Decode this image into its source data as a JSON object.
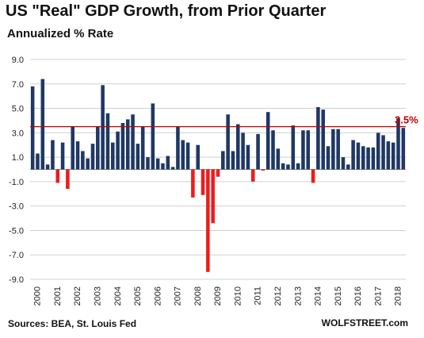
{
  "header": {
    "title": "US \"Real\" GDP Growth, from Prior Quarter",
    "subtitle": "Annualized % Rate"
  },
  "footer": {
    "source": "Sources: BEA, St. Louis Fed",
    "brand": "WOLFSTREET.com"
  },
  "colors": {
    "positive": "#1f3864",
    "negative": "#ee1c1c",
    "reference_line": "#c00000",
    "reference_label": "#c00000",
    "grid": "#d0d0d0"
  },
  "chart_data": {
    "type": "bar",
    "title": "US \"Real\" GDP Growth, from Prior Quarter",
    "subtitle": "Annualized % Rate",
    "ylim": [
      -9.0,
      9.0
    ],
    "yticks": [
      "9.0",
      "7.0",
      "5.0",
      "3.0",
      "1.0",
      "-1.0",
      "-3.0",
      "-5.0",
      "-7.0",
      "-9.0"
    ],
    "grid": "horizontal",
    "year_labels": [
      "2000",
      "2001",
      "2002",
      "2003",
      "2004",
      "2005",
      "2006",
      "2007",
      "2008",
      "2009",
      "2010",
      "2011",
      "2012",
      "2013",
      "2014",
      "2015",
      "2016",
      "2017",
      "2018"
    ],
    "quarters_start": "2000 Q1",
    "values": [
      6.8,
      1.3,
      7.4,
      0.4,
      2.4,
      -1.1,
      2.2,
      -1.6,
      3.5,
      2.3,
      1.5,
      0.9,
      2.1,
      3.5,
      6.9,
      4.6,
      2.2,
      3.1,
      3.8,
      4.1,
      4.5,
      2.1,
      3.5,
      1.0,
      5.4,
      0.9,
      0.5,
      1.1,
      0.2,
      3.5,
      2.4,
      2.2,
      -2.3,
      2.0,
      -2.1,
      -8.4,
      -4.4,
      -0.6,
      1.5,
      4.5,
      1.5,
      3.7,
      3.0,
      2.0,
      -1.0,
      2.9,
      -0.1,
      4.7,
      3.2,
      1.7,
      0.5,
      0.4,
      3.6,
      0.5,
      3.2,
      3.2,
      -1.1,
      5.1,
      4.9,
      1.9,
      3.3,
      3.3,
      1.0,
      0.4,
      2.4,
      2.2,
      1.9,
      1.8,
      1.8,
      3.0,
      2.8,
      2.3,
      2.2,
      4.2,
      3.4
    ],
    "reference_line": {
      "value": 3.5,
      "label": "3.5%"
    }
  }
}
